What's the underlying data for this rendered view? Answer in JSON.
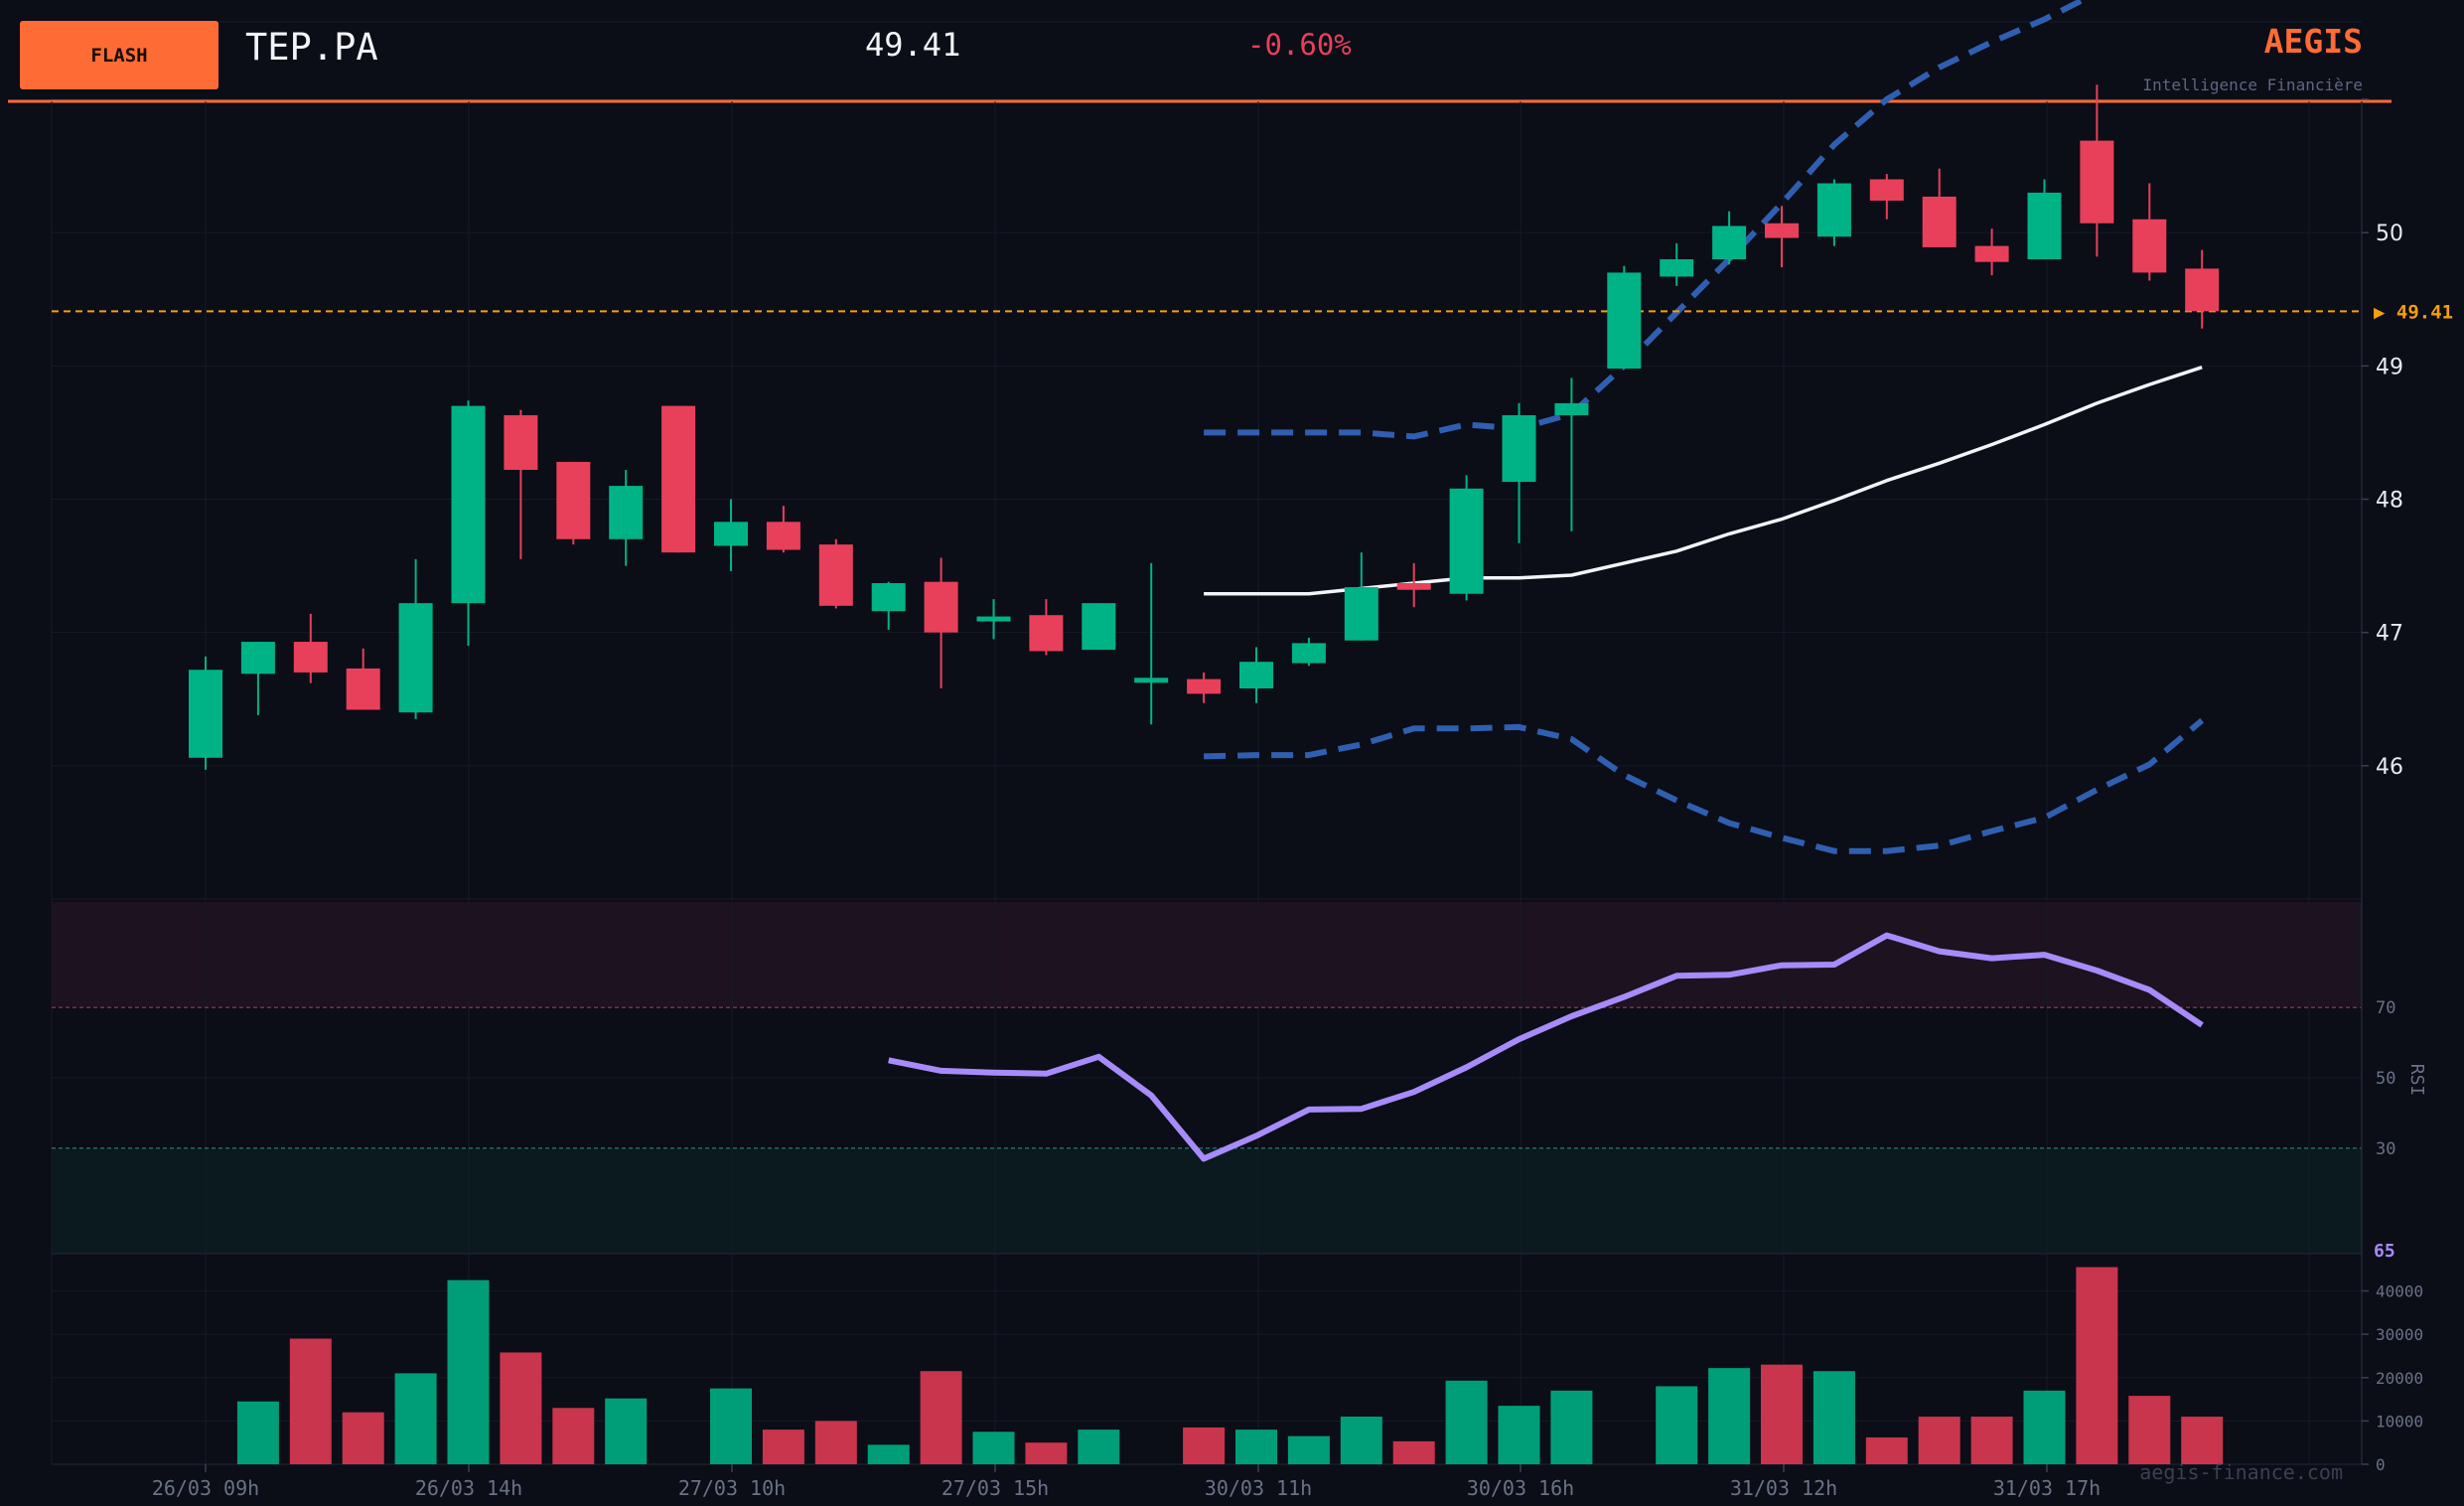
{
  "header": {
    "badge": "FLASH",
    "ticker": "TEP.PA",
    "price": "49.41",
    "change": "-0.60%",
    "brand": "AEGIS",
    "tagline": "Intelligence Financière",
    "watermark": "aegis-finance.com",
    "accent_color": "#ff6b35"
  },
  "chart_data": {
    "type": "candlestick",
    "x_tick_labels": [
      "26/03 09h",
      "26/03 14h",
      "27/03 10h",
      "27/03 15h",
      "30/03 11h",
      "30/03 16h",
      "31/03 12h",
      "31/03 17h"
    ],
    "price_axis": {
      "ticks": [
        46,
        47,
        48,
        49,
        50
      ],
      "ylim": [
        45.0,
        51.0
      ]
    },
    "last_price": {
      "value": 49.41,
      "label": "▶ 49.41",
      "color": "#f59e0b"
    },
    "candles": [
      {
        "o": 46.06,
        "h": 46.82,
        "l": 45.97,
        "c": 46.72
      },
      {
        "o": 46.69,
        "h": 46.93,
        "l": 46.38,
        "c": 46.93
      },
      {
        "o": 46.93,
        "h": 47.14,
        "l": 46.62,
        "c": 46.7
      },
      {
        "o": 46.73,
        "h": 46.88,
        "l": 46.42,
        "c": 46.42
      },
      {
        "o": 46.4,
        "h": 47.55,
        "l": 46.35,
        "c": 47.22
      },
      {
        "o": 47.22,
        "h": 48.74,
        "l": 46.9,
        "c": 48.7
      },
      {
        "o": 48.63,
        "h": 48.67,
        "l": 47.55,
        "c": 48.22
      },
      {
        "o": 48.28,
        "h": 48.28,
        "l": 47.66,
        "c": 47.7
      },
      {
        "o": 47.7,
        "h": 48.22,
        "l": 47.5,
        "c": 48.1
      },
      {
        "o": 48.7,
        "h": 48.7,
        "l": 47.6,
        "c": 47.6
      },
      {
        "o": 47.65,
        "h": 48.0,
        "l": 47.46,
        "c": 47.83
      },
      {
        "o": 47.83,
        "h": 47.95,
        "l": 47.6,
        "c": 47.62
      },
      {
        "o": 47.66,
        "h": 47.7,
        "l": 47.18,
        "c": 47.2
      },
      {
        "o": 47.16,
        "h": 47.38,
        "l": 47.02,
        "c": 47.37
      },
      {
        "o": 47.38,
        "h": 47.56,
        "l": 46.58,
        "c": 47.0
      },
      {
        "o": 47.1,
        "h": 47.25,
        "l": 46.95,
        "c": 47.12
      },
      {
        "o": 47.13,
        "h": 47.25,
        "l": 46.83,
        "c": 46.86
      },
      {
        "o": 46.87,
        "h": 47.22,
        "l": 46.87,
        "c": 47.22
      },
      {
        "o": 46.63,
        "h": 47.52,
        "l": 46.31,
        "c": 46.66
      },
      {
        "o": 46.65,
        "h": 46.7,
        "l": 46.47,
        "c": 46.54
      },
      {
        "o": 46.58,
        "h": 46.89,
        "l": 46.47,
        "c": 46.78
      },
      {
        "o": 46.77,
        "h": 46.96,
        "l": 46.75,
        "c": 46.92
      },
      {
        "o": 46.94,
        "h": 47.6,
        "l": 46.94,
        "c": 47.34
      },
      {
        "o": 47.37,
        "h": 47.52,
        "l": 47.19,
        "c": 47.32
      },
      {
        "o": 47.29,
        "h": 48.18,
        "l": 47.24,
        "c": 48.08
      },
      {
        "o": 48.13,
        "h": 48.72,
        "l": 47.67,
        "c": 48.63
      },
      {
        "o": 48.63,
        "h": 48.91,
        "l": 47.76,
        "c": 48.72
      },
      {
        "o": 48.98,
        "h": 49.75,
        "l": 48.98,
        "c": 49.7
      },
      {
        "o": 49.67,
        "h": 49.92,
        "l": 49.6,
        "c": 49.8
      },
      {
        "o": 49.8,
        "h": 50.16,
        "l": 49.76,
        "c": 50.05
      },
      {
        "o": 50.07,
        "h": 50.2,
        "l": 49.74,
        "c": 49.96
      },
      {
        "o": 49.97,
        "h": 50.4,
        "l": 49.9,
        "c": 50.37
      },
      {
        "o": 50.4,
        "h": 50.44,
        "l": 50.1,
        "c": 50.24
      },
      {
        "o": 50.27,
        "h": 50.48,
        "l": 49.89,
        "c": 49.89
      },
      {
        "o": 49.9,
        "h": 50.03,
        "l": 49.68,
        "c": 49.78
      },
      {
        "o": 49.8,
        "h": 50.4,
        "l": 49.8,
        "c": 50.3
      },
      {
        "o": 50.69,
        "h": 51.11,
        "l": 49.82,
        "c": 50.07
      },
      {
        "o": 50.1,
        "h": 50.37,
        "l": 49.64,
        "c": 49.7
      },
      {
        "o": 49.73,
        "h": 49.87,
        "l": 49.28,
        "c": 49.41
      }
    ],
    "sma": {
      "start_index": 19,
      "values": [
        47.29,
        47.29,
        47.29,
        47.33,
        47.37,
        47.41,
        47.41,
        47.43,
        47.52,
        47.61,
        47.74,
        47.85,
        47.99,
        48.14,
        48.27,
        48.41,
        48.56,
        48.72,
        48.86,
        48.99
      ],
      "color": "#f2f4f8"
    },
    "bb_upper": {
      "start_index": 19,
      "values": [
        48.5,
        48.5,
        48.5,
        48.5,
        48.47,
        48.56,
        48.53,
        48.64,
        49.0,
        49.4,
        49.8,
        50.22,
        50.66,
        51.0,
        51.24,
        51.43,
        51.6,
        51.8,
        51.88,
        51.82
      ],
      "color": "#2f5fb0"
    },
    "bb_lower": {
      "start_index": 19,
      "values": [
        46.07,
        46.08,
        46.08,
        46.16,
        46.28,
        46.28,
        46.29,
        46.2,
        45.93,
        45.74,
        45.57,
        45.46,
        45.36,
        45.36,
        45.4,
        45.51,
        45.61,
        45.82,
        46.01,
        46.34
      ],
      "color": "#2f5fb0"
    },
    "rsi": {
      "start_index": 13,
      "values": [
        55,
        52,
        51.5,
        51.2,
        56,
        45,
        27,
        33.5,
        41,
        41.2,
        46,
        53,
        61,
        67.5,
        73,
        79,
        79.3,
        82,
        82.2,
        90.5,
        86,
        84,
        85,
        80.5,
        75,
        65
      ],
      "ticks": [
        30,
        50,
        70
      ],
      "ylim": [
        0,
        100
      ],
      "axis_label": "RSI",
      "last_label": "65",
      "color": "#a78bfa"
    },
    "volume": {
      "values": [
        0,
        14500,
        29000,
        12000,
        21000,
        42500,
        25800,
        13000,
        15200,
        0,
        17500,
        8000,
        10000,
        4500,
        21500,
        7500,
        5000,
        8000,
        0,
        8500,
        8000,
        6500,
        11000,
        5300,
        19300,
        13500,
        17000,
        0,
        18000,
        22200,
        23000,
        21500,
        6200,
        11000,
        11000,
        17000,
        45500,
        15800,
        11000
      ],
      "ticks": [
        0,
        10000,
        20000,
        30000,
        40000
      ],
      "ylim": [
        0,
        48600
      ]
    },
    "colors": {
      "up": "#00b386",
      "down": "#e8405a"
    }
  }
}
